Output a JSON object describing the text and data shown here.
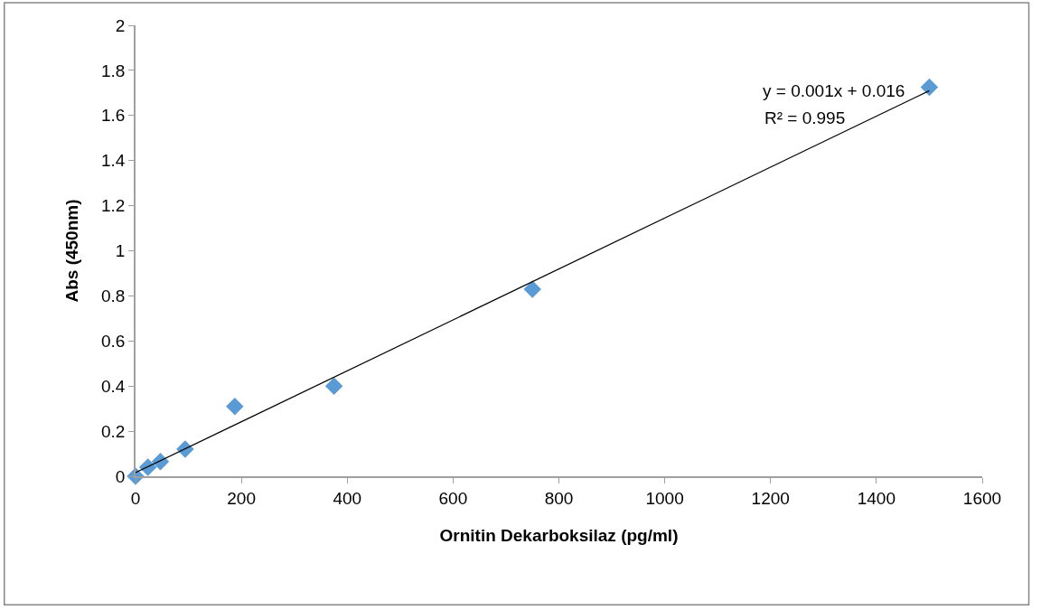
{
  "chart_data": {
    "type": "scatter",
    "xlabel": "Ornitin Dekarboksilaz (pg/ml)",
    "ylabel": "Abs (450nm)",
    "annotations": [
      "y = 0.001x + 0.016",
      "R² = 0.995"
    ],
    "series": [
      {
        "color": "#5b9bd5",
        "marker": "diamond",
        "x": [
          0,
          23.4,
          46.9,
          93.75,
          187.5,
          375,
          750,
          1500
        ],
        "values": [
          0,
          0.04,
          0.065,
          0.12,
          0.31,
          0.4,
          0.83,
          1.725
        ]
      },
      {
        "type": "line",
        "color": "#000000",
        "line_style": "solid",
        "x": [
          0,
          1500
        ],
        "values": [
          0.016,
          1.71
        ]
      }
    ],
    "xlim": [
      0,
      1600
    ],
    "xticks": [
      0,
      200,
      400,
      600,
      800,
      1000,
      1200,
      1400,
      1600
    ],
    "ylim": [
      0,
      2
    ],
    "yticks": [
      0,
      0.2,
      0.4,
      0.6,
      0.8,
      1,
      1.2,
      1.4,
      1.6,
      1.8,
      2
    ]
  }
}
